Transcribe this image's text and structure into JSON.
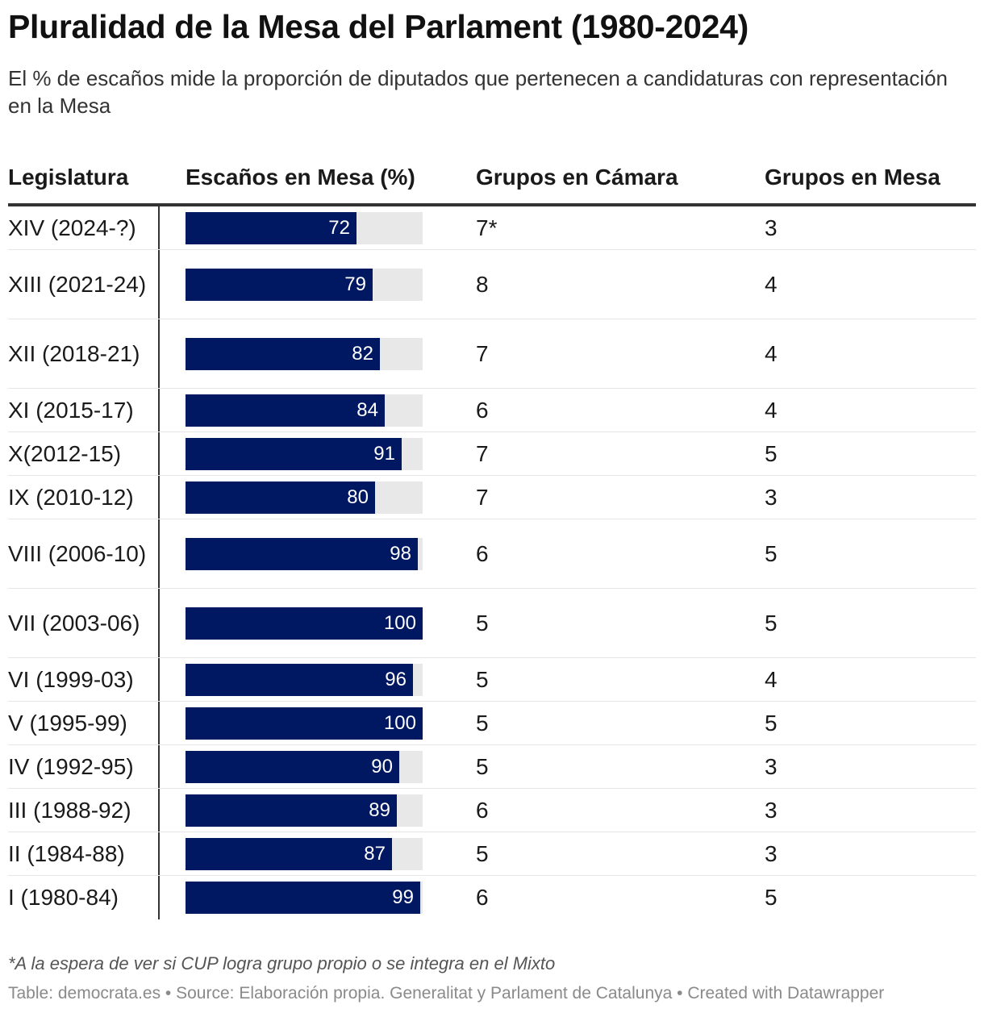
{
  "title": "Pluralidad de la Mesa del Parlament (1980-2024)",
  "subtitle": "El % de escaños mide la proporción de diputados que pertenecen a candidaturas con representación en la Mesa",
  "columns": [
    "Legislatura",
    "Escaños en Mesa (%)",
    "Grupos en Cámara",
    "Grupos en Mesa"
  ],
  "colors": {
    "bar": "#001862",
    "track": "#e8e8e8",
    "bar_label": "#ffffff"
  },
  "chart_data": {
    "type": "table",
    "xlim": [
      0,
      100
    ],
    "rows": [
      {
        "legislatura": "XIV (2024-?)",
        "escanos": 72,
        "grupos_camara": "7*",
        "grupos_mesa": "3"
      },
      {
        "legislatura": "XIII (2021-24)",
        "escanos": 79,
        "grupos_camara": "8",
        "grupos_mesa": "4"
      },
      {
        "legislatura": "XII (2018-21)",
        "escanos": 82,
        "grupos_camara": "7",
        "grupos_mesa": "4"
      },
      {
        "legislatura": "XI (2015-17)",
        "escanos": 84,
        "grupos_camara": "6",
        "grupos_mesa": "4"
      },
      {
        "legislatura": "X(2012-15)",
        "escanos": 91,
        "grupos_camara": "7",
        "grupos_mesa": "5"
      },
      {
        "legislatura": "IX (2010-12)",
        "escanos": 80,
        "grupos_camara": "7",
        "grupos_mesa": "3"
      },
      {
        "legislatura": "VIII (2006-10)",
        "escanos": 98,
        "grupos_camara": "6",
        "grupos_mesa": "5"
      },
      {
        "legislatura": "VII (2003-06)",
        "escanos": 100,
        "grupos_camara": "5",
        "grupos_mesa": "5"
      },
      {
        "legislatura": "VI (1999-03)",
        "escanos": 96,
        "grupos_camara": "5",
        "grupos_mesa": "4"
      },
      {
        "legislatura": "V (1995-99)",
        "escanos": 100,
        "grupos_camara": "5",
        "grupos_mesa": "5"
      },
      {
        "legislatura": "IV (1992-95)",
        "escanos": 90,
        "grupos_camara": "5",
        "grupos_mesa": "3"
      },
      {
        "legislatura": "III (1988-92)",
        "escanos": 89,
        "grupos_camara": "6",
        "grupos_mesa": "3"
      },
      {
        "legislatura": "II (1984-88)",
        "escanos": 87,
        "grupos_camara": "5",
        "grupos_mesa": "3"
      },
      {
        "legislatura": "I (1980-84)",
        "escanos": 99,
        "grupos_camara": "6",
        "grupos_mesa": "5"
      }
    ]
  },
  "note": "*A la espera de ver si CUP logra grupo propio o se integra en el Mixto",
  "footer": "Table: democrata.es • Source: Elaboración propia. Generalitat y Parlament de Catalunya • Created with Datawrapper"
}
